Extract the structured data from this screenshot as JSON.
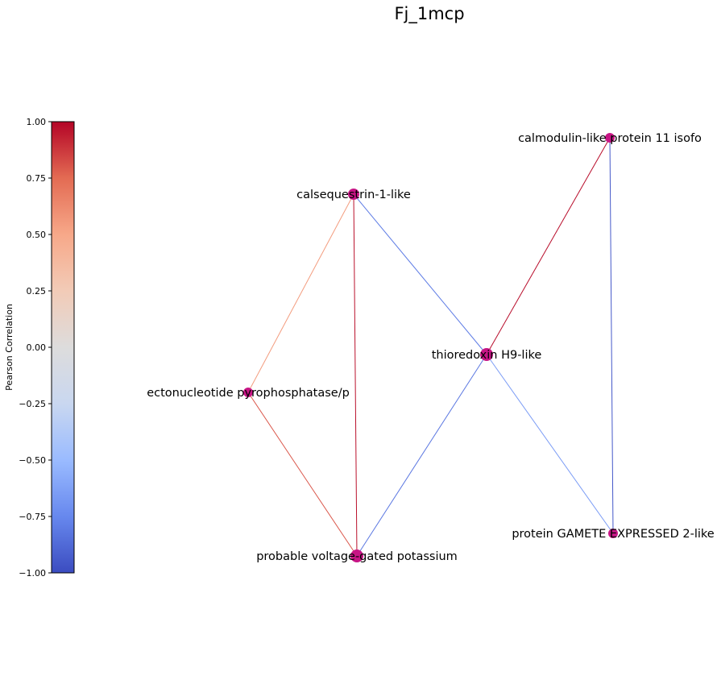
{
  "title": "Fj_1mcp",
  "colorbar": {
    "label": "Pearson Correlation",
    "min": -1.0,
    "max": 1.0,
    "ticks": [
      "1.00",
      "0.75",
      "0.50",
      "0.25",
      "0.00",
      "−0.25",
      "−0.50",
      "−0.75",
      "−1.00"
    ],
    "colormap": [
      "#3b4cc0",
      "#6788ee",
      "#9abbff",
      "#c9d7f0",
      "#dddcdc",
      "#f2cbb7",
      "#f7a889",
      "#e36b53",
      "#b40426"
    ]
  },
  "node_color": "#c71585",
  "nodes": [
    {
      "id": "calsequestrin",
      "label": "calsequestrin-1-like"
    },
    {
      "id": "calmodulin",
      "label": "calmodulin-like protein 11 isofo"
    },
    {
      "id": "thioredoxin",
      "label": "thioredoxin H9-like"
    },
    {
      "id": "ectonucleotide",
      "label": "ectonucleotide pyrophosphatase/p"
    },
    {
      "id": "potassium",
      "label": "probable voltage-gated potassium"
    },
    {
      "id": "gamete",
      "label": "protein GAMETE EXPRESSED 2-like"
    }
  ],
  "edges": [
    {
      "source": "calsequestrin",
      "target": "ectonucleotide",
      "weight": 0.55
    },
    {
      "source": "calsequestrin",
      "target": "potassium",
      "weight": 0.97
    },
    {
      "source": "calsequestrin",
      "target": "thioredoxin",
      "weight": -0.8
    },
    {
      "source": "ectonucleotide",
      "target": "potassium",
      "weight": 0.8
    },
    {
      "source": "potassium",
      "target": "thioredoxin",
      "weight": -0.82
    },
    {
      "source": "thioredoxin",
      "target": "calmodulin",
      "weight": 0.98
    },
    {
      "source": "thioredoxin",
      "target": "gamete",
      "weight": -0.65
    },
    {
      "source": "calmodulin",
      "target": "gamete",
      "weight": -0.95
    }
  ]
}
